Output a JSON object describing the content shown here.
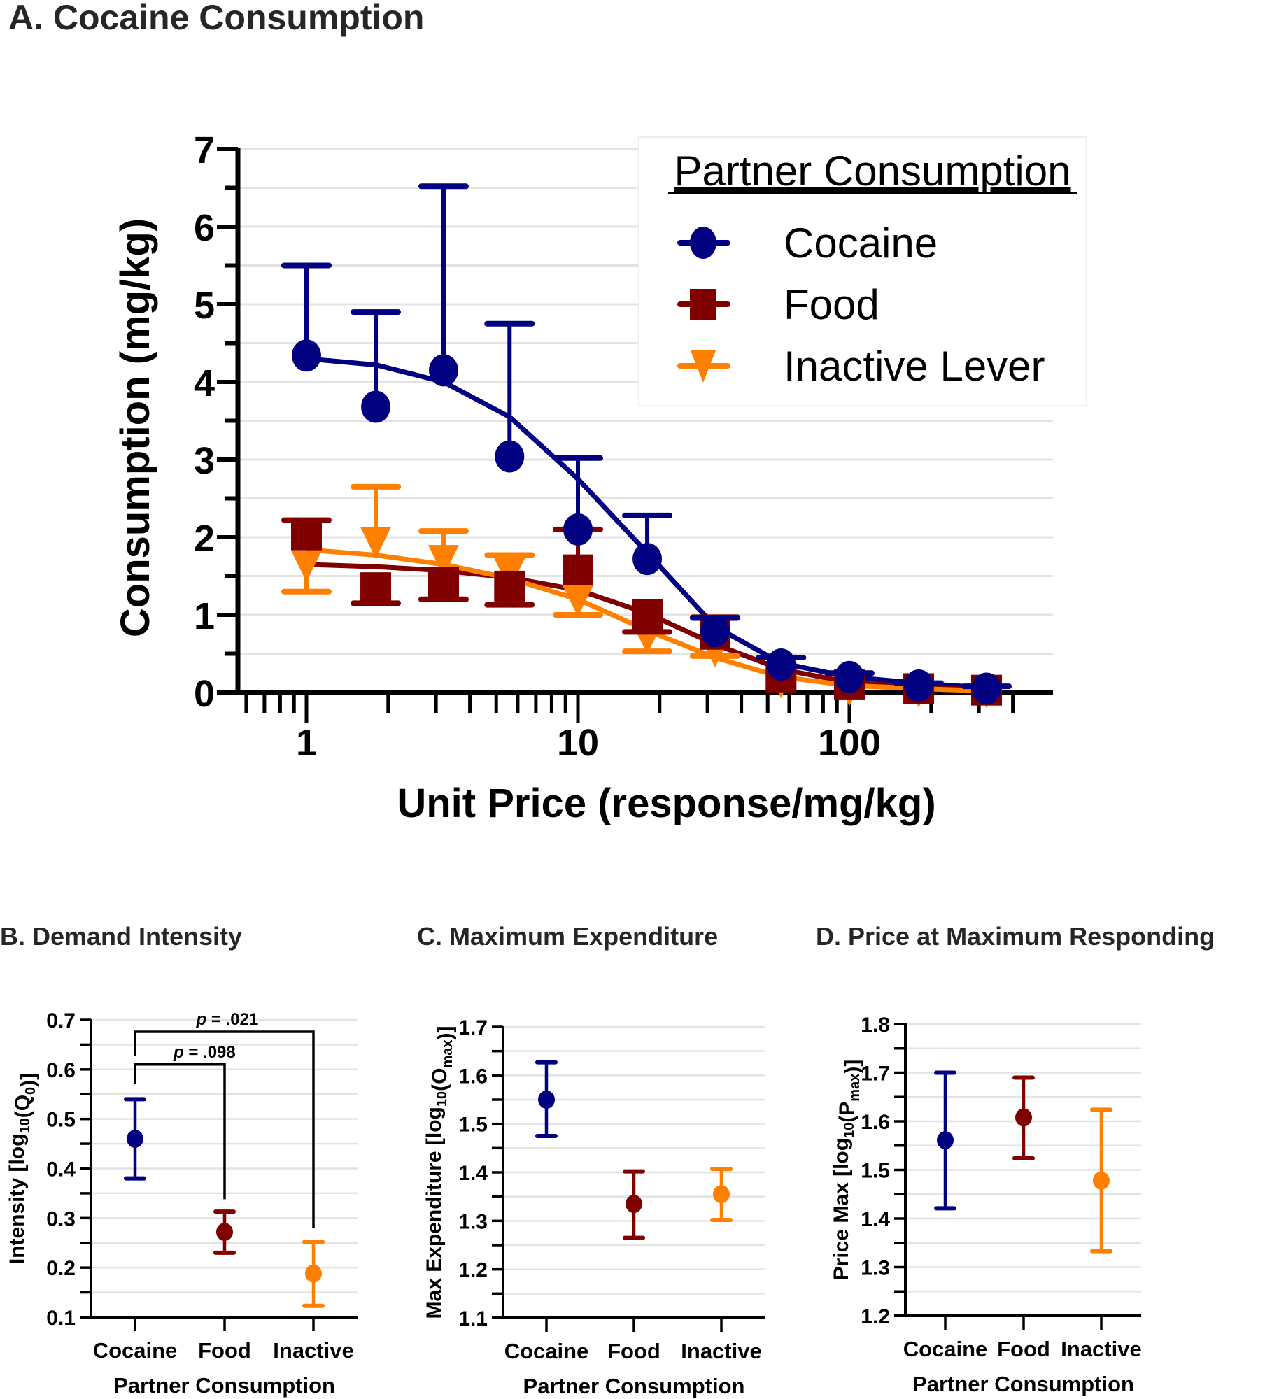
{
  "chart_data": [
    {
      "id": "A",
      "type": "scatter",
      "title": "A. Cocaine Consumption",
      "xlabel": "Unit Price (response/mg/kg)",
      "ylabel": "Consumption (mg/kg)",
      "xscale": "log",
      "xlim": [
        0.6,
        450
      ],
      "ylim": [
        0,
        7
      ],
      "xticks": [
        1,
        10,
        100
      ],
      "xtick_labels": [
        "1",
        "10",
        "100"
      ],
      "yticks": [
        0,
        1,
        2,
        3,
        4,
        5,
        6,
        7
      ],
      "ytick_labels": [
        "0",
        "1",
        "2",
        "3",
        "4",
        "5",
        "6",
        "7"
      ],
      "grid": "horizontal",
      "legend": {
        "title": "Partner Consumption",
        "placement": "top-right",
        "entries": [
          "Cocaine",
          "Food",
          "Inactive Lever"
        ]
      },
      "x": [
        1,
        1.8,
        3.2,
        5.6,
        10,
        18,
        32,
        56,
        100,
        180,
        320
      ],
      "series": [
        {
          "name": "Cocaine",
          "color": "#000080",
          "marker": "circle",
          "values": [
            4.34,
            3.68,
            4.15,
            3.04,
            2.1,
            1.72,
            0.79,
            0.36,
            0.2,
            0.09,
            0.05
          ],
          "error_upper": [
            5.5,
            4.9,
            6.52,
            4.75,
            3.02,
            2.28,
            0.96,
            0.45,
            0.25,
            0.12,
            0.08
          ],
          "error_direction": "up",
          "fit": [
            4.3,
            4.22,
            4.0,
            3.55,
            2.75,
            1.8,
            0.85,
            0.38,
            0.2,
            0.12,
            0.06
          ]
        },
        {
          "name": "Food",
          "color": "#800000",
          "marker": "square",
          "values": [
            2.03,
            1.35,
            1.42,
            1.37,
            1.58,
            1.0,
            0.75,
            0.2,
            0.1,
            0.05,
            0.03
          ],
          "error_upper": [
            2.22,
            null,
            null,
            null,
            2.1,
            null,
            0.97,
            null,
            null,
            null,
            null
          ],
          "error_lower": [
            null,
            1.15,
            1.2,
            1.13,
            null,
            0.78,
            null,
            null,
            null,
            null,
            null
          ],
          "fit": [
            1.65,
            1.62,
            1.57,
            1.48,
            1.32,
            1.02,
            0.62,
            0.3,
            0.13,
            0.07,
            0.03
          ]
        },
        {
          "name": "Inactive Lever",
          "color": "#FF8000",
          "marker": "triangle-down",
          "values": [
            1.65,
            1.95,
            1.72,
            1.55,
            1.2,
            0.72,
            0.55,
            0.15,
            0.05,
            0.03,
            0.02
          ],
          "error_upper": [
            null,
            2.65,
            2.08,
            1.77,
            null,
            null,
            null,
            null,
            null,
            null,
            null
          ],
          "error_lower": [
            1.3,
            null,
            null,
            null,
            1.0,
            0.53,
            0.47,
            null,
            null,
            null,
            null
          ],
          "fit": [
            1.84,
            1.77,
            1.65,
            1.47,
            1.2,
            0.8,
            0.45,
            0.2,
            0.09,
            0.05,
            0.02
          ]
        }
      ]
    },
    {
      "id": "B",
      "type": "scatter",
      "title": "B. Demand Intensity",
      "xlabel": "Partner Consumption",
      "ylabel_main": "Intensity [log",
      "ylabel_sub": "10",
      "ylabel_mid": "(Q",
      "ylabel_sub2": "0",
      "ylabel_end": ")]",
      "ylim": [
        0.1,
        0.7
      ],
      "yticks": [
        0.1,
        0.2,
        0.3,
        0.4,
        0.5,
        0.6,
        0.7
      ],
      "ytick_labels": [
        "0.1",
        "0.2",
        "0.3",
        "0.4",
        "0.5",
        "0.6",
        "0.7"
      ],
      "categories": [
        "Cocaine",
        "Food",
        "Inactive"
      ],
      "colors": [
        "#000080",
        "#800000",
        "#FF8000"
      ],
      "values": [
        0.46,
        0.272,
        0.188
      ],
      "error_low": [
        0.38,
        0.23,
        0.123
      ],
      "error_high": [
        0.54,
        0.313,
        0.252
      ],
      "annotations": [
        {
          "text": "p = .098",
          "from": 0,
          "to": 1,
          "level": 0.61
        },
        {
          "text": "p = .021",
          "from": 0,
          "to": 2,
          "level": 0.676
        }
      ]
    },
    {
      "id": "C",
      "type": "scatter",
      "title": "C. Maximum Expenditure",
      "xlabel": "Partner Consumption",
      "ylabel_main": "Max Expenditure [log",
      "ylabel_sub": "10",
      "ylabel_mid": "(O",
      "ylabel_sub2": "max",
      "ylabel_end": ")]",
      "ylim": [
        1.1,
        1.7
      ],
      "yticks": [
        1.1,
        1.2,
        1.3,
        1.4,
        1.5,
        1.6,
        1.7
      ],
      "ytick_labels": [
        "1.1",
        "1.2",
        "1.3",
        "1.4",
        "1.5",
        "1.6",
        "1.7"
      ],
      "categories": [
        "Cocaine",
        "Food",
        "Inactive"
      ],
      "colors": [
        "#000080",
        "#800000",
        "#FF8000"
      ],
      "values": [
        1.55,
        1.335,
        1.355
      ],
      "error_low": [
        1.475,
        1.265,
        1.302
      ],
      "error_high": [
        1.627,
        1.402,
        1.407
      ]
    },
    {
      "id": "D",
      "type": "scatter",
      "title": "D. Price at Maximum Responding",
      "xlabel": "Partner Consumption",
      "ylabel_main": "Price Max [log",
      "ylabel_sub": "10",
      "ylabel_mid": "(P",
      "ylabel_sub2": "max",
      "ylabel_end": ")]",
      "ylim": [
        1.2,
        1.8
      ],
      "yticks": [
        1.2,
        1.3,
        1.4,
        1.5,
        1.6,
        1.7,
        1.8
      ],
      "ytick_labels": [
        "1.2",
        "1.3",
        "1.4",
        "1.5",
        "1.6",
        "1.7",
        "1.8"
      ],
      "categories": [
        "Cocaine",
        "Food",
        "Inactive"
      ],
      "colors": [
        "#000080",
        "#800000",
        "#FF8000"
      ],
      "values": [
        1.561,
        1.608,
        1.478
      ],
      "error_low": [
        1.421,
        1.524,
        1.333
      ],
      "error_high": [
        1.7,
        1.69,
        1.624
      ]
    }
  ]
}
